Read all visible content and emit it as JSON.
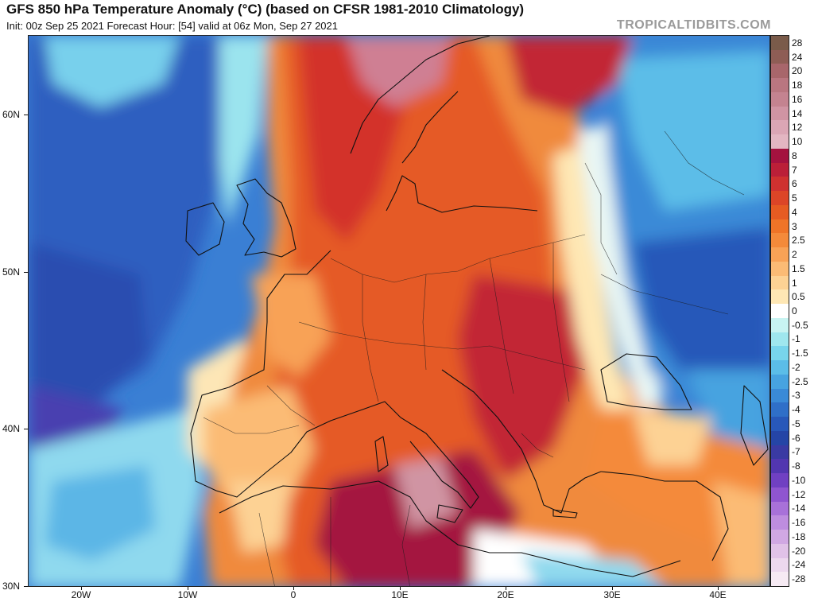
{
  "header": {
    "title": "GFS 850 hPa Temperature Anomaly (°C) (based on CFSR 1981-2010 Climatology)",
    "subtitle": "Init: 00z Sep 25 2021   Forecast Hour: [54]   valid at 06z Mon, Sep 27 2021",
    "site": "TROPICALTIDBITS.COM"
  },
  "axes": {
    "lat_labels": [
      "60N",
      "50N",
      "40N",
      "30N"
    ],
    "lon_labels": [
      "20W",
      "10W",
      "0",
      "10E",
      "20E",
      "30E",
      "40E"
    ]
  },
  "colorbar": {
    "labels": [
      "28",
      "24",
      "20",
      "18",
      "16",
      "14",
      "12",
      "10",
      "8",
      "7",
      "6",
      "5",
      "4",
      "3",
      "2.5",
      "2",
      "1.5",
      "1",
      "0.5",
      "0",
      "-0.5",
      "-1",
      "-1.5",
      "-2",
      "-2.5",
      "-3",
      "-4",
      "-5",
      "-6",
      "-7",
      "-8",
      "-10",
      "-12",
      "-14",
      "-16",
      "-18",
      "-20",
      "-24",
      "-28"
    ],
    "colors": [
      "#7a5b4a",
      "#8e5d55",
      "#a8666b",
      "#b97680",
      "#c48390",
      "#d094a3",
      "#dba6b5",
      "#e3b6c2",
      "#a4123f",
      "#bb1f38",
      "#cf3130",
      "#dc4527",
      "#e65b22",
      "#ef7427",
      "#f48a3a",
      "#f8a256",
      "#fbbb75",
      "#fdd294",
      "#fee7b4",
      "#ffffff",
      "#c8f4f2",
      "#9fe7ee",
      "#78d5ec",
      "#5bbde8",
      "#47a3e0",
      "#3a8ad7",
      "#2f6fc8",
      "#2858b9",
      "#2545a6",
      "#3a3aa3",
      "#5236b0",
      "#7040c2",
      "#8f55d0",
      "#a871d9",
      "#be8ddf",
      "#d1a8e3",
      "#e1c2e8",
      "#edd8ee",
      "#f6eaf3"
    ]
  },
  "map": {
    "ocean_bg": "#3b74cc"
  }
}
